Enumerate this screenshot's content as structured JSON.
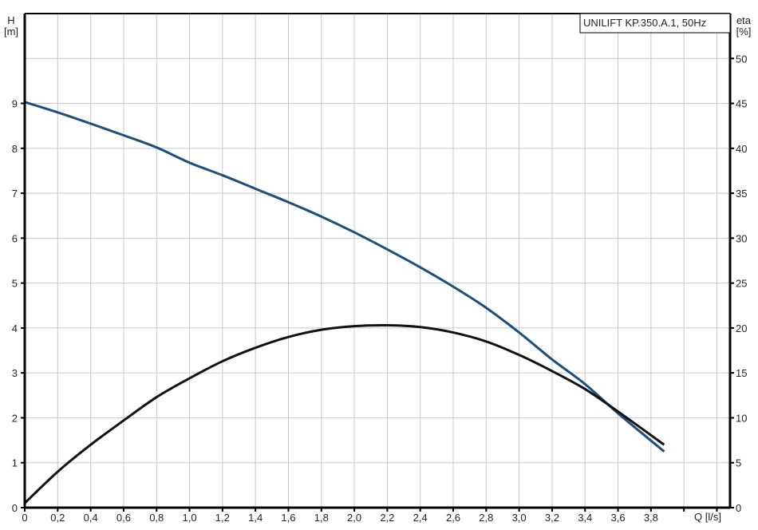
{
  "chart_data": {
    "type": "line",
    "title": "UNILIFT KP.350.A.1, 50Hz",
    "xlabel": "Q [l/s]",
    "ylabel": [
      "H",
      "[m]"
    ],
    "y2label": [
      "eta",
      "[%]"
    ],
    "xlim": [
      0,
      4.28
    ],
    "ylim": [
      0,
      11
    ],
    "y2lim": [
      0,
      55
    ],
    "grid": true,
    "x_ticks": [
      0,
      0.2,
      0.4,
      0.6,
      0.8,
      1.0,
      1.2,
      1.4,
      1.6,
      1.8,
      2.0,
      2.2,
      2.4,
      2.6,
      2.8,
      3.0,
      3.2,
      3.4,
      3.6,
      3.8,
      4.0,
      4.2
    ],
    "x_tick_labels": [
      "0",
      "0,2",
      "0,4",
      "0,6",
      "0,8",
      "1,0",
      "1,2",
      "1,4",
      "1,6",
      "1,8",
      "2,0",
      "2,2",
      "2,4",
      "2,6",
      "2,8",
      "3,0",
      "3,2",
      "3,4",
      "3,6",
      "3,8",
      "",
      ""
    ],
    "y_ticks": [
      0,
      1,
      2,
      3,
      4,
      5,
      6,
      7,
      8,
      9,
      10,
      11
    ],
    "y_tick_labels": [
      "0",
      "1",
      "2",
      "3",
      "4",
      "5",
      "6",
      "7",
      "8",
      "9",
      "",
      ""
    ],
    "y2_ticks": [
      0,
      5,
      10,
      15,
      20,
      25,
      30,
      35,
      40,
      45,
      50,
      55
    ],
    "y2_tick_labels": [
      "0",
      "5",
      "10",
      "15",
      "20",
      "25",
      "30",
      "35",
      "40",
      "45",
      "50",
      ""
    ],
    "series": [
      {
        "axis": "left",
        "color": "#1f4e79",
        "x": [
          0,
          0.2,
          0.4,
          0.6,
          0.8,
          1.0,
          1.2,
          1.4,
          1.6,
          1.8,
          2.0,
          2.2,
          2.4,
          2.6,
          2.8,
          3.0,
          3.2,
          3.4,
          3.6,
          3.88
        ],
        "y": [
          9.03,
          8.8,
          8.55,
          8.29,
          8.02,
          7.68,
          7.4,
          7.1,
          6.8,
          6.48,
          6.13,
          5.75,
          5.35,
          4.92,
          4.45,
          3.9,
          3.3,
          2.75,
          2.1,
          1.25
        ]
      },
      {
        "axis": "right",
        "color": "#111111",
        "x": [
          0,
          0.2,
          0.4,
          0.6,
          0.8,
          1.0,
          1.2,
          1.4,
          1.6,
          1.8,
          2.0,
          2.2,
          2.4,
          2.6,
          2.8,
          3.0,
          3.2,
          3.4,
          3.6,
          3.88
        ],
        "y": [
          0.5,
          4,
          7,
          9.7,
          12.3,
          14.4,
          16.3,
          17.8,
          19,
          19.8,
          20.2,
          20.3,
          20.1,
          19.5,
          18.5,
          17,
          15.2,
          13.2,
          10.7,
          7.0
        ]
      }
    ]
  }
}
